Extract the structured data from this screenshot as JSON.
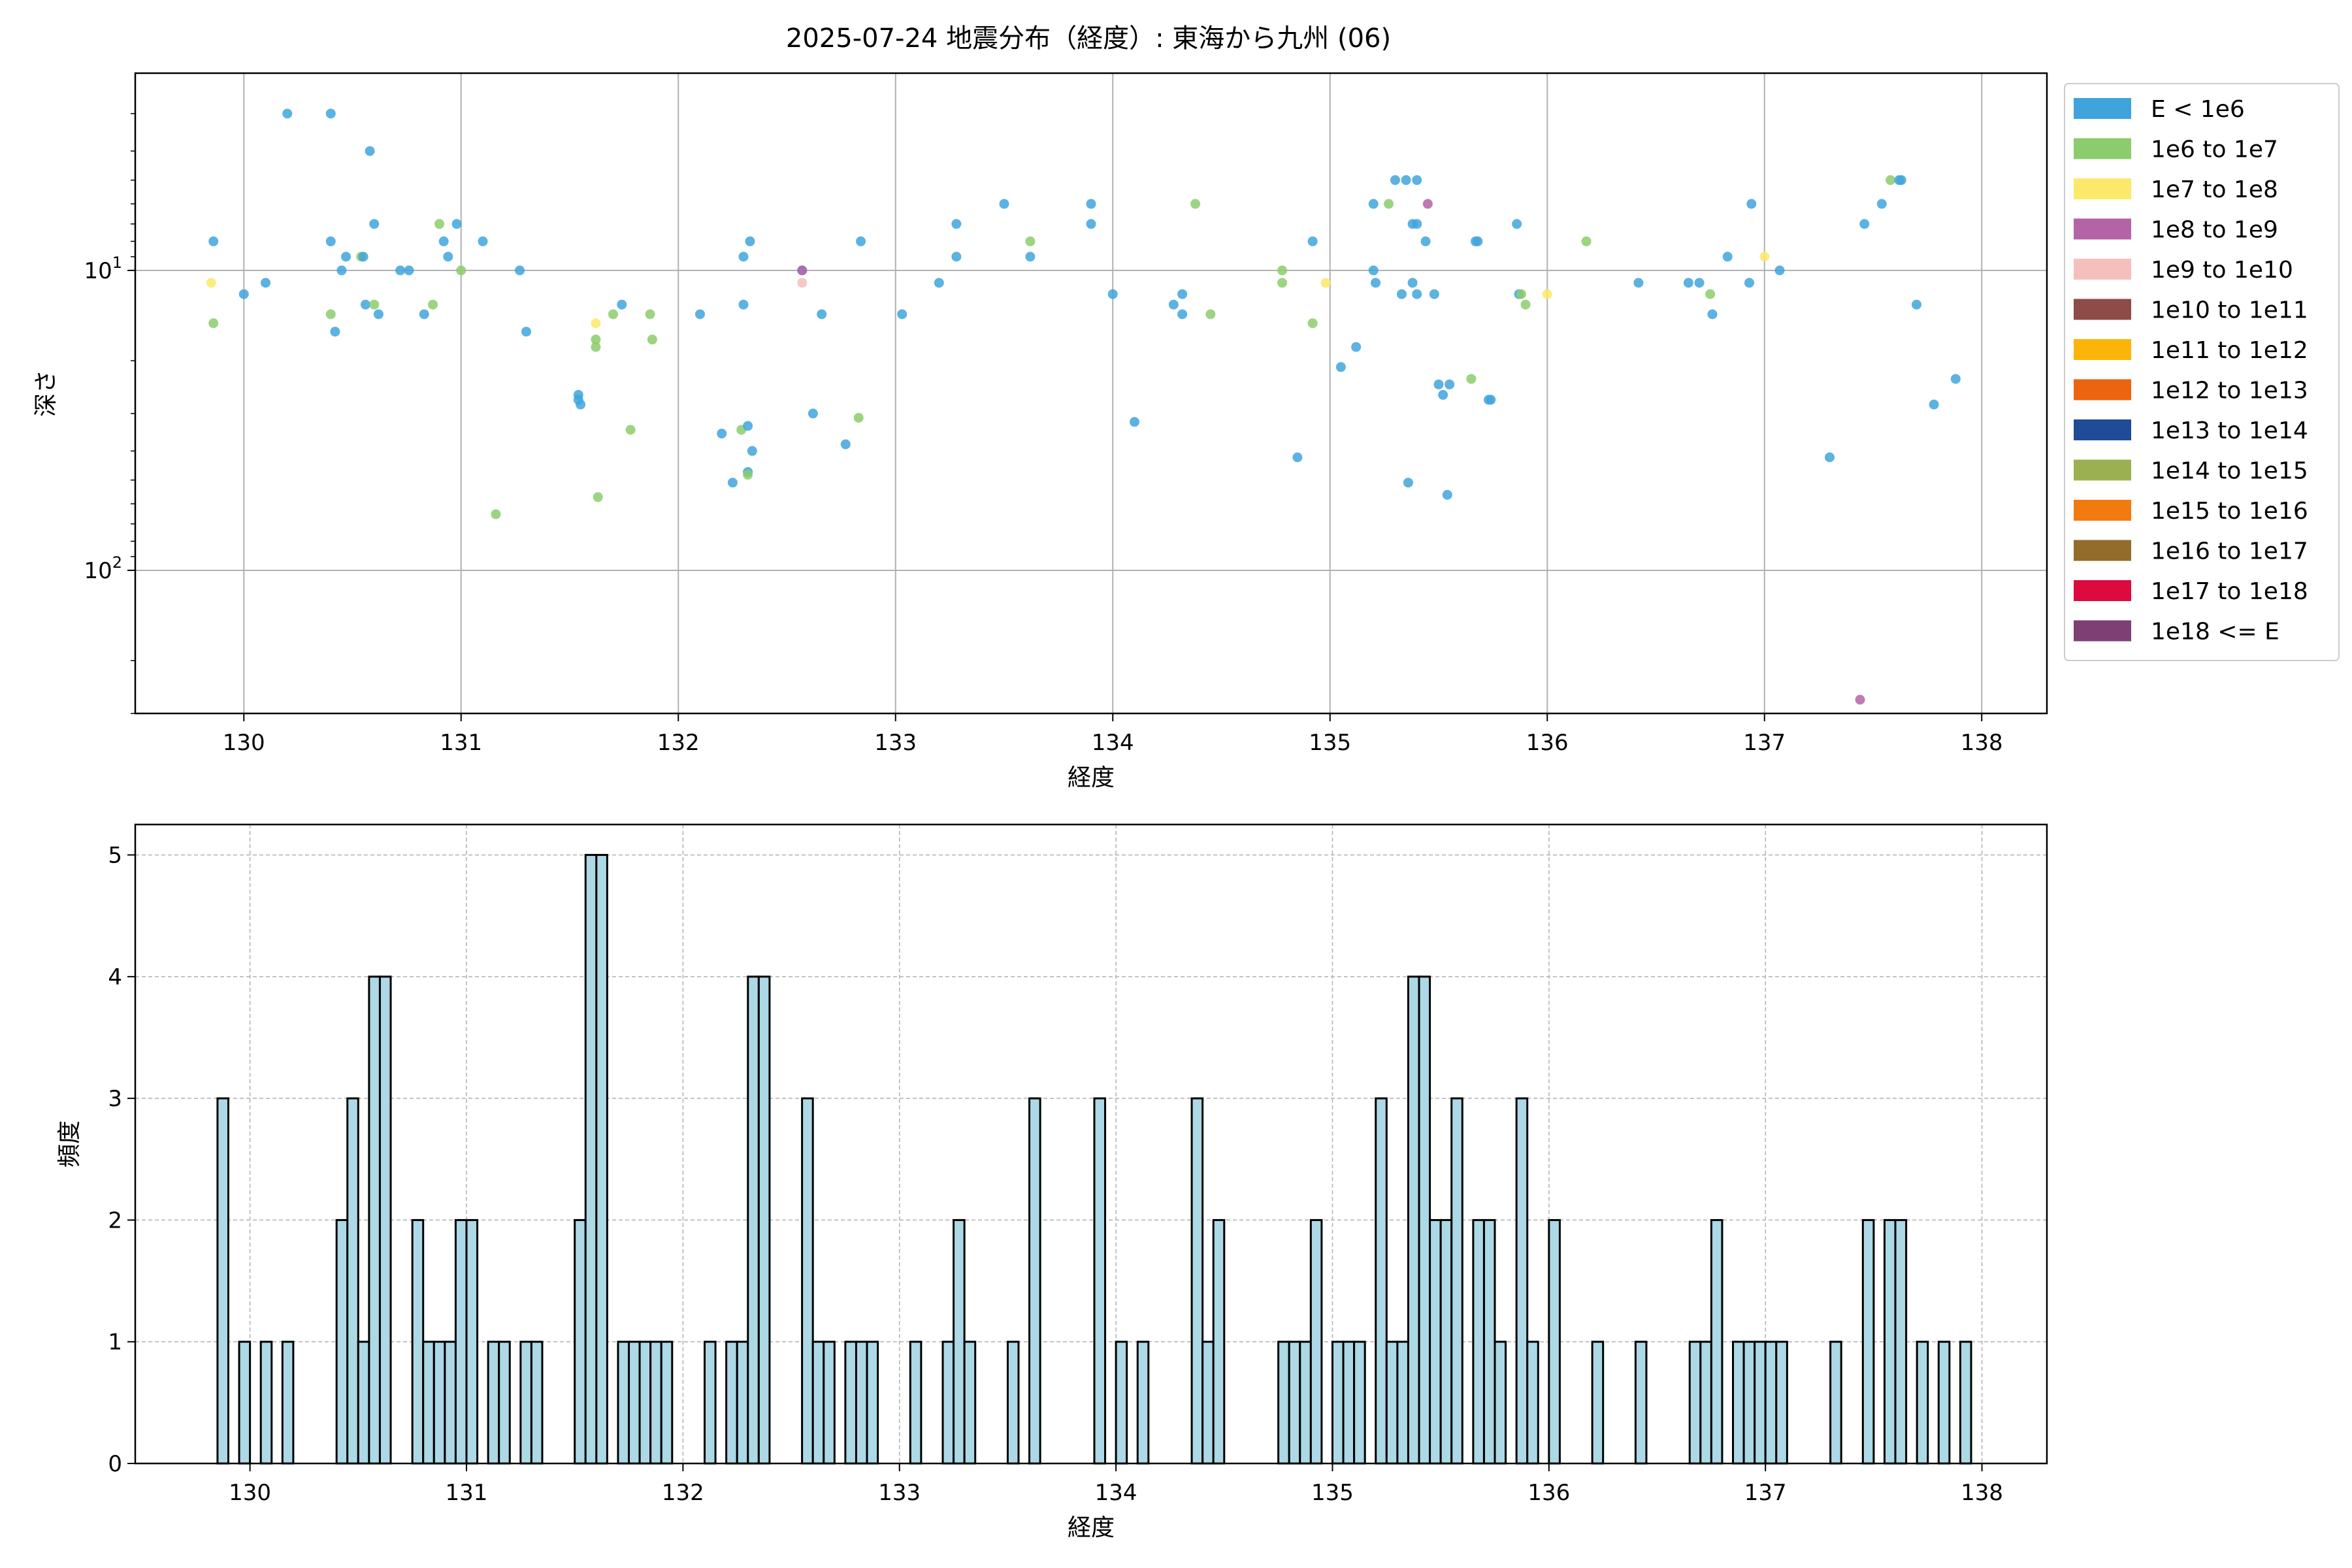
{
  "chart_data": {
    "title": "2025-07-24 地震分布（経度）: 東海から九州 (06)",
    "scatter": {
      "type": "scatter",
      "xlabel": "経度",
      "ylabel": "深さ",
      "xlim": [
        129.5,
        138.3
      ],
      "ylim": [
        300,
        2.2
      ],
      "yscale": "log",
      "yinverted": true,
      "xticks": [
        130,
        131,
        132,
        133,
        134,
        135,
        136,
        137,
        138
      ],
      "yticks": [
        {
          "value": 10,
          "base": "10",
          "exp": "1"
        },
        {
          "value": 100,
          "base": "10",
          "exp": "2"
        }
      ],
      "grid": true,
      "legend_placement": "outside-right",
      "legend": [
        {
          "label": "E < 1e6",
          "color": "#3fa4dc"
        },
        {
          "label": "1e6 to 1e7",
          "color": "#8ccc6c"
        },
        {
          "label": "1e7 to 1e8",
          "color": "#fce96a"
        },
        {
          "label": "1e8 to 1e9",
          "color": "#b563a7"
        },
        {
          "label": "1e9 to 1e10",
          "color": "#f5bfbc"
        },
        {
          "label": "1e10 to 1e11",
          "color": "#8e4b47"
        },
        {
          "label": "1e11 to 1e12",
          "color": "#fbb509"
        },
        {
          "label": "1e12 to 1e13",
          "color": "#ec6310"
        },
        {
          "label": "1e13 to 1e14",
          "color": "#1f4b97"
        },
        {
          "label": "1e14 to 1e15",
          "color": "#9bb151"
        },
        {
          "label": "1e15 to 1e16",
          "color": "#f27b10"
        },
        {
          "label": "1e16 to 1e17",
          "color": "#936b2a"
        },
        {
          "label": "1e17 to 1e18",
          "color": "#dc0a3f"
        },
        {
          "label": "1e18 <= E",
          "color": "#7d3f74"
        }
      ],
      "points": [
        [
          129.86,
          8,
          0
        ],
        [
          129.86,
          15,
          1
        ],
        [
          129.85,
          11,
          2
        ],
        [
          130.0,
          12,
          0
        ],
        [
          130.1,
          11,
          0
        ],
        [
          130.2,
          3,
          0
        ],
        [
          130.4,
          3,
          0
        ],
        [
          130.4,
          8,
          0
        ],
        [
          130.4,
          14,
          1
        ],
        [
          130.42,
          16,
          0
        ],
        [
          130.45,
          10,
          0
        ],
        [
          130.47,
          9,
          0
        ],
        [
          130.54,
          9,
          1
        ],
        [
          130.55,
          9,
          0
        ],
        [
          130.56,
          13,
          0
        ],
        [
          130.58,
          4,
          0
        ],
        [
          130.6,
          7,
          0
        ],
        [
          130.6,
          13,
          1
        ],
        [
          130.62,
          14,
          0
        ],
        [
          130.72,
          10,
          0
        ],
        [
          130.76,
          10,
          0
        ],
        [
          130.83,
          14,
          0
        ],
        [
          130.87,
          13,
          1
        ],
        [
          130.9,
          7,
          1
        ],
        [
          130.92,
          8,
          0
        ],
        [
          130.94,
          9,
          0
        ],
        [
          130.98,
          7,
          0
        ],
        [
          131.0,
          10,
          1
        ],
        [
          131.1,
          8,
          0
        ],
        [
          131.16,
          65,
          1
        ],
        [
          131.27,
          10,
          0
        ],
        [
          131.3,
          16,
          0
        ],
        [
          131.54,
          26,
          0
        ],
        [
          131.54,
          27,
          0
        ],
        [
          131.55,
          28,
          0
        ],
        [
          131.62,
          15,
          2
        ],
        [
          131.62,
          17,
          1
        ],
        [
          131.62,
          18,
          1
        ],
        [
          131.63,
          57,
          1
        ],
        [
          131.7,
          14,
          1
        ],
        [
          131.74,
          13,
          0
        ],
        [
          131.78,
          34,
          1
        ],
        [
          131.87,
          14,
          1
        ],
        [
          131.88,
          17,
          1
        ],
        [
          132.1,
          14,
          0
        ],
        [
          132.2,
          35,
          0
        ],
        [
          132.25,
          51,
          0
        ],
        [
          132.29,
          34,
          1
        ],
        [
          132.3,
          9,
          0
        ],
        [
          132.3,
          13,
          0
        ],
        [
          132.32,
          33,
          0
        ],
        [
          132.32,
          47,
          0
        ],
        [
          132.32,
          48,
          1
        ],
        [
          132.34,
          40,
          0
        ],
        [
          132.33,
          8,
          0
        ],
        [
          132.57,
          10,
          0
        ],
        [
          132.57,
          11,
          4
        ],
        [
          132.57,
          10,
          3
        ],
        [
          132.62,
          30,
          0
        ],
        [
          132.66,
          14,
          0
        ],
        [
          132.77,
          38,
          0
        ],
        [
          132.83,
          31,
          1
        ],
        [
          132.84,
          8,
          0
        ],
        [
          133.03,
          14,
          0
        ],
        [
          133.2,
          11,
          0
        ],
        [
          133.28,
          7,
          0
        ],
        [
          133.28,
          9,
          0
        ],
        [
          133.5,
          6,
          0
        ],
        [
          133.62,
          8,
          1
        ],
        [
          133.62,
          9,
          0
        ],
        [
          133.9,
          6,
          0
        ],
        [
          133.9,
          7,
          0
        ],
        [
          134.0,
          12,
          0
        ],
        [
          134.1,
          32,
          0
        ],
        [
          134.28,
          13,
          0
        ],
        [
          134.32,
          12,
          0
        ],
        [
          134.32,
          14,
          0
        ],
        [
          134.38,
          6,
          1
        ],
        [
          134.45,
          14,
          1
        ],
        [
          134.78,
          10,
          1
        ],
        [
          134.78,
          11,
          1
        ],
        [
          134.85,
          42,
          0
        ],
        [
          134.92,
          8,
          0
        ],
        [
          134.92,
          15,
          1
        ],
        [
          134.98,
          11,
          2
        ],
        [
          135.05,
          21,
          0
        ],
        [
          135.12,
          18,
          0
        ],
        [
          135.2,
          6,
          0
        ],
        [
          135.2,
          10,
          0
        ],
        [
          135.21,
          11,
          0
        ],
        [
          135.27,
          6,
          1
        ],
        [
          135.3,
          5,
          0
        ],
        [
          135.33,
          12,
          0
        ],
        [
          135.35,
          5,
          0
        ],
        [
          135.36,
          51,
          0
        ],
        [
          135.38,
          11,
          0
        ],
        [
          135.38,
          7,
          0
        ],
        [
          135.4,
          5,
          0
        ],
        [
          135.4,
          7,
          0
        ],
        [
          135.4,
          12,
          0
        ],
        [
          135.44,
          8,
          0
        ],
        [
          135.45,
          6,
          3
        ],
        [
          135.48,
          12,
          0
        ],
        [
          135.5,
          24,
          0
        ],
        [
          135.52,
          26,
          0
        ],
        [
          135.54,
          56,
          0
        ],
        [
          135.55,
          24,
          0
        ],
        [
          135.65,
          23,
          1
        ],
        [
          135.67,
          8,
          0
        ],
        [
          135.68,
          8,
          0
        ],
        [
          135.73,
          27,
          0
        ],
        [
          135.74,
          27,
          0
        ],
        [
          135.86,
          7,
          0
        ],
        [
          135.87,
          12,
          0
        ],
        [
          135.88,
          12,
          1
        ],
        [
          135.9,
          13,
          1
        ],
        [
          136.0,
          12,
          2
        ],
        [
          136.18,
          8,
          1
        ],
        [
          136.42,
          11,
          0
        ],
        [
          136.65,
          11,
          0
        ],
        [
          136.7,
          11,
          0
        ],
        [
          136.75,
          12,
          1
        ],
        [
          136.76,
          14,
          0
        ],
        [
          136.83,
          9,
          0
        ],
        [
          136.93,
          11,
          0
        ],
        [
          136.94,
          6,
          0
        ],
        [
          137.0,
          9,
          2
        ],
        [
          137.07,
          10,
          0
        ],
        [
          137.3,
          42,
          0
        ],
        [
          137.44,
          270,
          3
        ],
        [
          137.46,
          7,
          0
        ],
        [
          137.54,
          6,
          0
        ],
        [
          137.58,
          5,
          1
        ],
        [
          137.62,
          5,
          0
        ],
        [
          137.63,
          5,
          0
        ],
        [
          137.7,
          13,
          0
        ],
        [
          137.78,
          28,
          0
        ],
        [
          137.88,
          23,
          0
        ]
      ]
    },
    "histogram": {
      "type": "bar",
      "xlabel": "経度",
      "ylabel": "頻度",
      "xlim": [
        129.47,
        138.3
      ],
      "ylim": [
        0,
        5.25
      ],
      "xticks": [
        130,
        131,
        132,
        133,
        134,
        135,
        136,
        137,
        138
      ],
      "yticks": [
        0,
        1,
        2,
        3,
        4,
        5
      ],
      "grid": true,
      "bin_width": 0.05,
      "bar_color": "#add8e6",
      "bins": [
        [
          129.85,
          3
        ],
        [
          129.95,
          1
        ],
        [
          130.05,
          1
        ],
        [
          130.15,
          1
        ],
        [
          130.4,
          2
        ],
        [
          130.45,
          3
        ],
        [
          130.5,
          1
        ],
        [
          130.55,
          4
        ],
        [
          130.6,
          4
        ],
        [
          130.75,
          2
        ],
        [
          130.8,
          1
        ],
        [
          130.85,
          1
        ],
        [
          130.9,
          1
        ],
        [
          130.95,
          2
        ],
        [
          131.0,
          2
        ],
        [
          131.1,
          1
        ],
        [
          131.15,
          1
        ],
        [
          131.25,
          1
        ],
        [
          131.3,
          1
        ],
        [
          131.5,
          2
        ],
        [
          131.55,
          5
        ],
        [
          131.6,
          5
        ],
        [
          131.7,
          1
        ],
        [
          131.75,
          1
        ],
        [
          131.8,
          1
        ],
        [
          131.85,
          1
        ],
        [
          131.9,
          1
        ],
        [
          132.1,
          1
        ],
        [
          132.2,
          1
        ],
        [
          132.25,
          1
        ],
        [
          132.3,
          4
        ],
        [
          132.35,
          4
        ],
        [
          132.55,
          3
        ],
        [
          132.6,
          1
        ],
        [
          132.65,
          1
        ],
        [
          132.75,
          1
        ],
        [
          132.8,
          1
        ],
        [
          132.85,
          1
        ],
        [
          133.05,
          1
        ],
        [
          133.2,
          1
        ],
        [
          133.25,
          2
        ],
        [
          133.3,
          1
        ],
        [
          133.5,
          1
        ],
        [
          133.6,
          3
        ],
        [
          133.9,
          3
        ],
        [
          134.0,
          1
        ],
        [
          134.1,
          1
        ],
        [
          134.35,
          3
        ],
        [
          134.4,
          1
        ],
        [
          134.45,
          2
        ],
        [
          134.75,
          1
        ],
        [
          134.8,
          1
        ],
        [
          134.85,
          1
        ],
        [
          134.9,
          2
        ],
        [
          135.0,
          1
        ],
        [
          135.05,
          1
        ],
        [
          135.1,
          1
        ],
        [
          135.2,
          3
        ],
        [
          135.25,
          1
        ],
        [
          135.3,
          1
        ],
        [
          135.35,
          4
        ],
        [
          135.4,
          4
        ],
        [
          135.45,
          2
        ],
        [
          135.5,
          2
        ],
        [
          135.55,
          3
        ],
        [
          135.65,
          2
        ],
        [
          135.7,
          2
        ],
        [
          135.75,
          1
        ],
        [
          135.85,
          3
        ],
        [
          135.9,
          1
        ],
        [
          136.0,
          2
        ],
        [
          136.2,
          1
        ],
        [
          136.4,
          1
        ],
        [
          136.65,
          1
        ],
        [
          136.7,
          1
        ],
        [
          136.75,
          2
        ],
        [
          136.85,
          1
        ],
        [
          136.9,
          1
        ],
        [
          136.95,
          1
        ],
        [
          137.0,
          1
        ],
        [
          137.05,
          1
        ],
        [
          137.3,
          1
        ],
        [
          137.45,
          2
        ],
        [
          137.55,
          2
        ],
        [
          137.6,
          2
        ],
        [
          137.7,
          1
        ],
        [
          137.8,
          1
        ],
        [
          137.9,
          1
        ]
      ]
    }
  }
}
